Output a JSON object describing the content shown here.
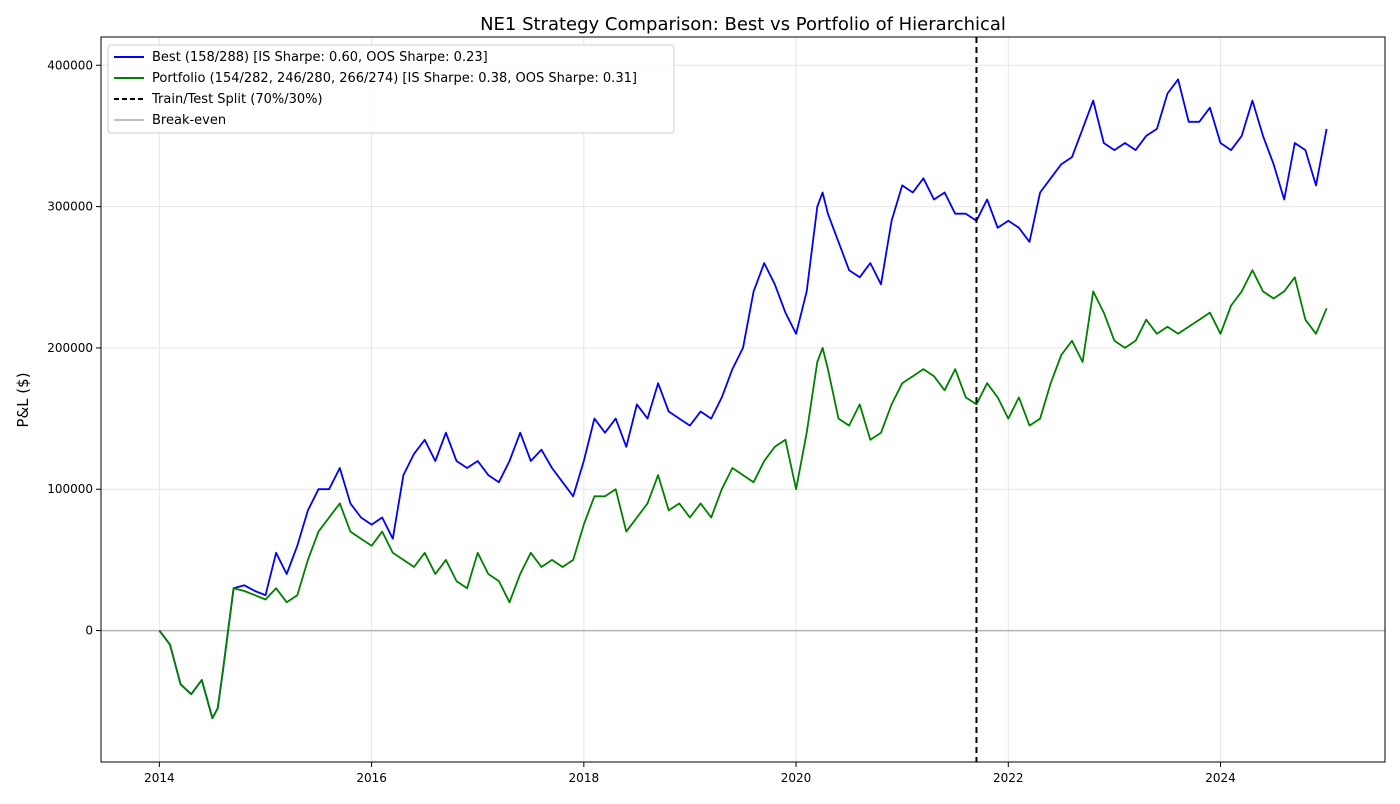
{
  "chart_data": {
    "type": "line",
    "title": "NE1 Strategy Comparison: Best vs Portfolio of Hierarchical",
    "xlabel": "",
    "ylabel": "P&L ($)",
    "xlim": [
      2013.45,
      2025.55
    ],
    "ylim": [
      -93000,
      420000
    ],
    "x_ticks": [
      2014,
      2016,
      2018,
      2020,
      2022,
      2024
    ],
    "x_tick_labels": [
      "2014",
      "2016",
      "2018",
      "2020",
      "2022",
      "2024"
    ],
    "y_ticks": [
      0,
      100000,
      200000,
      300000,
      400000
    ],
    "y_tick_labels": [
      "0",
      "100000",
      "200000",
      "300000",
      "400000"
    ],
    "grid": true,
    "legend_position": "top-left",
    "split_x": 2021.7,
    "breakeven_y": 0,
    "series": [
      {
        "name": "Best (158/288) [IS Sharpe: 0.60, OOS Sharpe: 0.23]",
        "color": "#0000ff",
        "x": [
          2014.0,
          2014.1,
          2014.2,
          2014.3,
          2014.4,
          2014.5,
          2014.55,
          2014.6,
          2014.7,
          2014.8,
          2014.9,
          2015.0,
          2015.1,
          2015.2,
          2015.3,
          2015.4,
          2015.5,
          2015.6,
          2015.7,
          2015.8,
          2015.9,
          2016.0,
          2016.1,
          2016.2,
          2016.3,
          2016.4,
          2016.5,
          2016.6,
          2016.7,
          2016.8,
          2016.9,
          2017.0,
          2017.1,
          2017.2,
          2017.3,
          2017.4,
          2017.5,
          2017.6,
          2017.7,
          2017.8,
          2017.9,
          2018.0,
          2018.1,
          2018.2,
          2018.3,
          2018.4,
          2018.5,
          2018.6,
          2018.7,
          2018.8,
          2018.9,
          2019.0,
          2019.1,
          2019.2,
          2019.3,
          2019.4,
          2019.5,
          2019.6,
          2019.7,
          2019.8,
          2019.9,
          2020.0,
          2020.1,
          2020.2,
          2020.25,
          2020.3,
          2020.4,
          2020.5,
          2020.6,
          2020.7,
          2020.8,
          2020.9,
          2021.0,
          2021.1,
          2021.2,
          2021.3,
          2021.4,
          2021.5,
          2021.6,
          2021.7,
          2021.8,
          2021.9,
          2022.0,
          2022.1,
          2022.2,
          2022.3,
          2022.4,
          2022.5,
          2022.6,
          2022.7,
          2022.8,
          2022.9,
          2023.0,
          2023.1,
          2023.2,
          2023.3,
          2023.4,
          2023.5,
          2023.6,
          2023.7,
          2023.8,
          2023.9,
          2024.0,
          2024.1,
          2024.2,
          2024.3,
          2024.4,
          2024.5,
          2024.6,
          2024.7,
          2024.8,
          2024.9,
          2025.0
        ],
        "values": [
          0,
          -10000,
          -38000,
          -45000,
          -35000,
          -62000,
          -55000,
          -28000,
          30000,
          32000,
          28000,
          25000,
          55000,
          40000,
          60000,
          85000,
          100000,
          100000,
          115000,
          90000,
          80000,
          75000,
          80000,
          65000,
          110000,
          125000,
          135000,
          120000,
          140000,
          120000,
          115000,
          120000,
          110000,
          105000,
          120000,
          140000,
          120000,
          128000,
          115000,
          105000,
          95000,
          120000,
          150000,
          140000,
          150000,
          130000,
          160000,
          150000,
          175000,
          155000,
          150000,
          145000,
          155000,
          150000,
          165000,
          185000,
          200000,
          240000,
          260000,
          245000,
          225000,
          210000,
          240000,
          300000,
          310000,
          295000,
          275000,
          255000,
          250000,
          260000,
          245000,
          290000,
          315000,
          310000,
          320000,
          305000,
          310000,
          295000,
          295000,
          290000,
          305000,
          285000,
          290000,
          285000,
          275000,
          310000,
          320000,
          330000,
          335000,
          355000,
          375000,
          345000,
          340000,
          345000,
          340000,
          350000,
          355000,
          380000,
          390000,
          360000,
          360000,
          370000,
          345000,
          340000,
          350000,
          375000,
          350000,
          330000,
          305000,
          345000,
          340000,
          315000,
          355000
        ]
      },
      {
        "name": "Portfolio (154/282, 246/280, 266/274) [IS Sharpe: 0.38, OOS Sharpe: 0.31]",
        "color": "#008000",
        "x": [
          2014.0,
          2014.1,
          2014.2,
          2014.3,
          2014.4,
          2014.5,
          2014.55,
          2014.6,
          2014.7,
          2014.8,
          2014.9,
          2015.0,
          2015.1,
          2015.2,
          2015.3,
          2015.4,
          2015.5,
          2015.6,
          2015.7,
          2015.8,
          2015.9,
          2016.0,
          2016.1,
          2016.2,
          2016.3,
          2016.4,
          2016.5,
          2016.6,
          2016.7,
          2016.8,
          2016.9,
          2017.0,
          2017.1,
          2017.2,
          2017.3,
          2017.4,
          2017.5,
          2017.6,
          2017.7,
          2017.8,
          2017.9,
          2018.0,
          2018.1,
          2018.2,
          2018.3,
          2018.4,
          2018.5,
          2018.6,
          2018.7,
          2018.8,
          2018.9,
          2019.0,
          2019.1,
          2019.2,
          2019.3,
          2019.4,
          2019.5,
          2019.6,
          2019.7,
          2019.8,
          2019.9,
          2020.0,
          2020.1,
          2020.2,
          2020.25,
          2020.3,
          2020.4,
          2020.5,
          2020.6,
          2020.7,
          2020.8,
          2020.9,
          2021.0,
          2021.1,
          2021.2,
          2021.3,
          2021.4,
          2021.5,
          2021.6,
          2021.7,
          2021.8,
          2021.9,
          2022.0,
          2022.1,
          2022.2,
          2022.3,
          2022.4,
          2022.5,
          2022.6,
          2022.7,
          2022.8,
          2022.9,
          2023.0,
          2023.1,
          2023.2,
          2023.3,
          2023.4,
          2023.5,
          2023.6,
          2023.7,
          2023.8,
          2023.9,
          2024.0,
          2024.1,
          2024.2,
          2024.3,
          2024.4,
          2024.5,
          2024.6,
          2024.7,
          2024.8,
          2024.9,
          2025.0
        ],
        "values": [
          0,
          -10000,
          -38000,
          -45000,
          -35000,
          -62000,
          -55000,
          -28000,
          30000,
          28000,
          25000,
          22000,
          30000,
          20000,
          25000,
          50000,
          70000,
          80000,
          90000,
          70000,
          65000,
          60000,
          70000,
          55000,
          50000,
          45000,
          55000,
          40000,
          50000,
          35000,
          30000,
          55000,
          40000,
          35000,
          20000,
          40000,
          55000,
          45000,
          50000,
          45000,
          50000,
          75000,
          95000,
          95000,
          100000,
          70000,
          80000,
          90000,
          110000,
          85000,
          90000,
          80000,
          90000,
          80000,
          100000,
          115000,
          110000,
          105000,
          120000,
          130000,
          135000,
          100000,
          140000,
          190000,
          200000,
          185000,
          150000,
          145000,
          160000,
          135000,
          140000,
          160000,
          175000,
          180000,
          185000,
          180000,
          170000,
          185000,
          165000,
          160000,
          175000,
          165000,
          150000,
          165000,
          145000,
          150000,
          175000,
          195000,
          205000,
          190000,
          240000,
          225000,
          205000,
          200000,
          205000,
          220000,
          210000,
          215000,
          210000,
          215000,
          220000,
          225000,
          210000,
          230000,
          240000,
          255000,
          240000,
          235000,
          240000,
          250000,
          220000,
          210000,
          228000
        ]
      }
    ],
    "legend": [
      {
        "label": "Best (158/288) [IS Sharpe: 0.60, OOS Sharpe: 0.23]",
        "color": "#0000ff",
        "style": "solid"
      },
      {
        "label": "Portfolio (154/282, 246/280, 266/274) [IS Sharpe: 0.38, OOS Sharpe: 0.31]",
        "color": "#008000",
        "style": "solid"
      },
      {
        "label": "Train/Test Split (70%/30%)",
        "color": "#000000",
        "style": "dashed"
      },
      {
        "label": "Break-even",
        "color": "#bfbfbf",
        "style": "solid"
      }
    ]
  }
}
